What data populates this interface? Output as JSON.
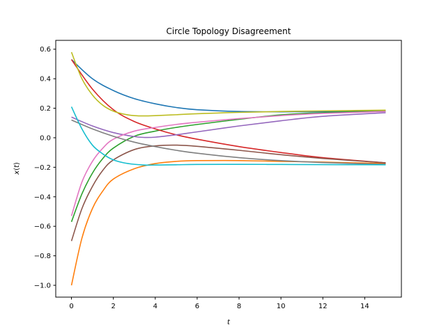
{
  "chart_data": {
    "type": "line",
    "title": "Circle Topology Disagreement",
    "xlabel": "t",
    "ylabel_parts": [
      "x",
      "(",
      "t",
      ")"
    ],
    "xlim": [
      -0.75,
      15.75
    ],
    "ylim": [
      -1.08,
      0.66
    ],
    "xticks": [
      0,
      2,
      4,
      6,
      8,
      10,
      12,
      14
    ],
    "yticks": [
      0.6,
      0.4,
      0.2,
      0.0,
      -0.2,
      -0.4,
      -0.6,
      -0.8,
      -1.0
    ],
    "xtick_labels": [
      "0",
      "2",
      "4",
      "6",
      "8",
      "10",
      "12",
      "14"
    ],
    "ytick_labels": [
      "0.6",
      "0.4",
      "0.2",
      "0.0",
      "−0.2",
      "−0.4",
      "−0.6",
      "−0.8",
      "−1.0"
    ],
    "grid": false,
    "series": [
      {
        "color": "#1f77b4",
        "x": [
          0,
          1,
          2,
          3,
          4,
          5,
          6,
          8,
          10,
          12,
          15
        ],
        "y": [
          0.53,
          0.4,
          0.32,
          0.265,
          0.23,
          0.205,
          0.19,
          0.178,
          0.176,
          0.177,
          0.18
        ]
      },
      {
        "color": "#ff7f0e",
        "x": [
          0,
          0.5,
          1,
          1.5,
          2,
          3,
          4,
          5,
          6,
          8,
          10,
          12,
          15
        ],
        "y": [
          -1.0,
          -0.68,
          -0.48,
          -0.36,
          -0.28,
          -0.21,
          -0.175,
          -0.16,
          -0.155,
          -0.155,
          -0.16,
          -0.165,
          -0.175
        ]
      },
      {
        "color": "#2ca02c",
        "x": [
          0,
          0.5,
          1,
          1.5,
          2,
          3,
          4,
          5,
          6,
          8,
          10,
          12,
          15
        ],
        "y": [
          -0.57,
          -0.38,
          -0.24,
          -0.14,
          -0.07,
          0.01,
          0.045,
          0.07,
          0.09,
          0.125,
          0.155,
          0.17,
          0.18
        ]
      },
      {
        "color": "#d62728",
        "x": [
          0,
          1,
          2,
          3,
          4,
          5,
          6,
          8,
          10,
          12,
          15
        ],
        "y": [
          0.53,
          0.33,
          0.19,
          0.11,
          0.06,
          0.02,
          -0.01,
          -0.06,
          -0.1,
          -0.135,
          -0.17
        ]
      },
      {
        "color": "#9467bd",
        "x": [
          0,
          1,
          2,
          3,
          3.5,
          4,
          5,
          6,
          8,
          10,
          12,
          15
        ],
        "y": [
          0.14,
          0.08,
          0.035,
          0.008,
          0.002,
          0.004,
          0.02,
          0.04,
          0.08,
          0.115,
          0.145,
          0.17
        ]
      },
      {
        "color": "#8c564b",
        "x": [
          0,
          0.5,
          1,
          1.5,
          2,
          3,
          4,
          5,
          6,
          8,
          10,
          12,
          15
        ],
        "y": [
          -0.7,
          -0.48,
          -0.33,
          -0.22,
          -0.15,
          -0.08,
          -0.055,
          -0.05,
          -0.058,
          -0.085,
          -0.115,
          -0.14,
          -0.17
        ]
      },
      {
        "color": "#e377c2",
        "x": [
          0,
          0.5,
          1,
          1.5,
          2,
          3,
          4,
          5,
          6,
          8,
          10,
          12,
          15
        ],
        "y": [
          -0.53,
          -0.3,
          -0.16,
          -0.07,
          -0.01,
          0.045,
          0.07,
          0.09,
          0.105,
          0.13,
          0.15,
          0.165,
          0.178
        ]
      },
      {
        "color": "#7f7f7f",
        "x": [
          0,
          1,
          2,
          3,
          4,
          5,
          6,
          8,
          10,
          12,
          15
        ],
        "y": [
          0.12,
          0.06,
          0.01,
          -0.03,
          -0.06,
          -0.085,
          -0.105,
          -0.135,
          -0.155,
          -0.168,
          -0.18
        ]
      },
      {
        "color": "#bcbd22",
        "x": [
          0,
          0.5,
          1,
          1.5,
          2,
          2.5,
          3,
          3.5,
          4,
          5,
          6,
          8,
          10,
          12,
          15
        ],
        "y": [
          0.58,
          0.4,
          0.29,
          0.22,
          0.18,
          0.16,
          0.15,
          0.148,
          0.15,
          0.156,
          0.163,
          0.172,
          0.178,
          0.182,
          0.187
        ]
      },
      {
        "color": "#17becf",
        "x": [
          0,
          0.5,
          1,
          1.5,
          2,
          2.5,
          3,
          3.5,
          4,
          5,
          6,
          8,
          10,
          12,
          15
        ],
        "y": [
          0.21,
          0.06,
          -0.05,
          -0.11,
          -0.15,
          -0.17,
          -0.18,
          -0.185,
          -0.185,
          -0.183,
          -0.181,
          -0.18,
          -0.181,
          -0.182,
          -0.183
        ]
      }
    ]
  }
}
